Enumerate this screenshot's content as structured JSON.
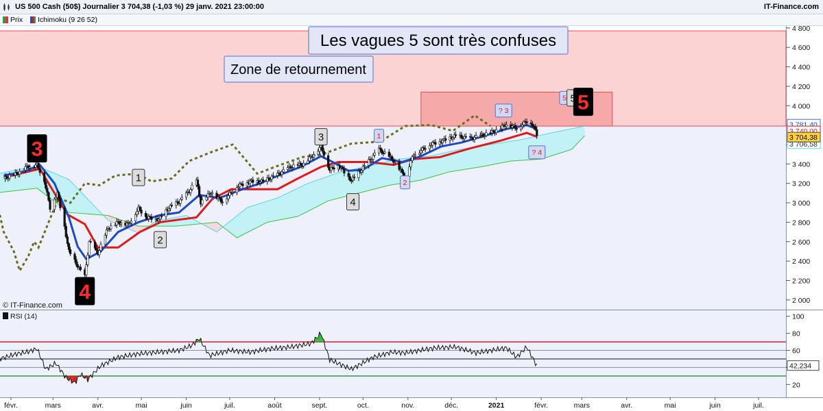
{
  "header": {
    "title": "US 500 Cash (50$) Journalier 3 704,38 (-1,03 %) 29 janv. 2021 23:00:00",
    "brand": "IT-Finance.com"
  },
  "legend": {
    "price_label": "Prix",
    "ichimoku_label": "Ichimoku (9 26 52)",
    "rsi_label": "RSI (14)"
  },
  "watermark": "© IT-Finance.com",
  "annotations": {
    "headline": "Les vagues 5 sont très confuses",
    "zone": "Zone de retournement",
    "wave_labels": [
      {
        "text": "3",
        "style": "big",
        "date": "2020-02-19",
        "price": 3560
      },
      {
        "text": "4",
        "style": "big",
        "date": "2020-03-23",
        "price": 2090
      },
      {
        "text": "1",
        "style": "grey",
        "date": "2020-04-29",
        "price": 3260
      },
      {
        "text": "2",
        "style": "grey",
        "date": "2020-05-14",
        "price": 2620
      },
      {
        "text": "3",
        "style": "grey",
        "date": "2020-09-02",
        "price": 3680
      },
      {
        "text": "4",
        "style": "grey",
        "date": "2020-09-24",
        "price": 3010
      },
      {
        "text": "1",
        "style": "pink",
        "date": "2020-10-12",
        "price": 3690
      },
      {
        "text": "2",
        "style": "pink",
        "date": "2020-10-30",
        "price": 3210
      },
      {
        "text": "? 3",
        "style": "pink",
        "date": "2021-01-06",
        "price": 3950
      },
      {
        "text": "? 4",
        "style": "pink",
        "date": "2021-01-29",
        "price": 3520
      },
      {
        "text": "5",
        "style": "pink",
        "date": "2021-02-17",
        "price": 4080
      },
      {
        "text": "5",
        "style": "grey",
        "date": "2021-02-23",
        "price": 4080
      },
      {
        "text": "5",
        "style": "big",
        "date": "2021-03-02",
        "price": 4040
      }
    ]
  },
  "chart_data": [
    {
      "type": "candlestick",
      "title": "US 500 Cash (50$) Journalier",
      "last_price": "3 704,38",
      "x_tick_labels": [
        "févr.",
        "mars",
        "avr.",
        "mai",
        "juin",
        "juil.",
        "août",
        "sept.",
        "oct.",
        "nov.",
        "déc.",
        "2021",
        "févr.",
        "mars",
        "avr.",
        "mai",
        "juin",
        "juil."
      ],
      "x_tick_dates": [
        "2020-02-01",
        "2020-03-01",
        "2020-04-01",
        "2020-05-01",
        "2020-06-01",
        "2020-07-01",
        "2020-08-01",
        "2020-09-01",
        "2020-10-01",
        "2020-11-01",
        "2020-12-01",
        "2021-01-01",
        "2021-02-01",
        "2021-03-01",
        "2021-04-01",
        "2021-05-01",
        "2021-06-01",
        "2021-07-01"
      ],
      "y_ticks": [
        2000,
        2200,
        2400,
        2600,
        2800,
        3000,
        3200,
        3400,
        3600,
        3800,
        4000,
        4200,
        4400,
        4600,
        4800
      ],
      "y_tick_labels": [
        "2 000",
        "2 200",
        "2 400",
        "2 600",
        "2 800",
        "3 000",
        "3 200",
        "3 400",
        "3 600",
        "3 800",
        "4 000",
        "4 200",
        "4 400",
        "4 600",
        "4 800"
      ],
      "ylim": [
        1900,
        4820
      ],
      "price_flags": [
        "3 781,40",
        "3 740,00",
        "3 704,38",
        "3 706,58"
      ],
      "zones": [
        {
          "name": "Zone de retournement",
          "from_date": "2020-01-20",
          "to_date": "2021-07-31",
          "low": 3790,
          "high": 4770,
          "color": "#fbd3d3"
        },
        {
          "name": "target",
          "from_date": "2020-11-10",
          "to_date": "2021-03-22",
          "low": 3790,
          "high": 4140,
          "color": "#f6a9a9"
        }
      ],
      "close": {
        "dates": [
          "2020-01-27",
          "2020-02-05",
          "2020-02-12",
          "2020-02-19",
          "2020-02-24",
          "2020-02-28",
          "2020-03-04",
          "2020-03-09",
          "2020-03-12",
          "2020-03-16",
          "2020-03-20",
          "2020-03-23",
          "2020-03-26",
          "2020-04-01",
          "2020-04-08",
          "2020-04-15",
          "2020-04-22",
          "2020-04-29",
          "2020-05-05",
          "2020-05-13",
          "2020-05-20",
          "2020-05-27",
          "2020-06-03",
          "2020-06-08",
          "2020-06-11",
          "2020-06-18",
          "2020-06-26",
          "2020-07-06",
          "2020-07-15",
          "2020-07-24",
          "2020-08-03",
          "2020-08-12",
          "2020-08-21",
          "2020-08-28",
          "2020-09-02",
          "2020-09-08",
          "2020-09-14",
          "2020-09-23",
          "2020-10-01",
          "2020-10-12",
          "2020-10-21",
          "2020-10-30",
          "2020-11-05",
          "2020-11-09",
          "2020-11-16",
          "2020-11-25",
          "2020-12-04",
          "2020-12-14",
          "2020-12-21",
          "2020-12-30",
          "2021-01-08",
          "2021-01-15",
          "2021-01-22",
          "2021-01-26",
          "2021-01-29"
        ],
        "values": [
          3250,
          3300,
          3370,
          3390,
          3230,
          2950,
          3100,
          2750,
          2500,
          2400,
          2300,
          2240,
          2600,
          2480,
          2740,
          2800,
          2780,
          2940,
          2850,
          2830,
          2950,
          3010,
          3120,
          3230,
          3000,
          3110,
          3010,
          3170,
          3220,
          3220,
          3290,
          3370,
          3400,
          3500,
          3580,
          3340,
          3390,
          3230,
          3360,
          3550,
          3450,
          3270,
          3500,
          3530,
          3600,
          3640,
          3690,
          3660,
          3690,
          3730,
          3810,
          3770,
          3840,
          3810,
          3704
        ]
      },
      "ichimoku": {
        "tenkan": {
          "dates": [
            "2020-01-27",
            "2020-02-12",
            "2020-02-21",
            "2020-03-02",
            "2020-03-12",
            "2020-03-18",
            "2020-03-24",
            "2020-04-03",
            "2020-04-15",
            "2020-04-29",
            "2020-05-13",
            "2020-05-27",
            "2020-06-10",
            "2020-06-24",
            "2020-07-08",
            "2020-07-22",
            "2020-08-05",
            "2020-08-19",
            "2020-09-02",
            "2020-09-10",
            "2020-09-21",
            "2020-10-01",
            "2020-10-14",
            "2020-10-28",
            "2020-11-10",
            "2020-11-24",
            "2020-12-08",
            "2020-12-22",
            "2021-01-08",
            "2021-01-22",
            "2021-01-29"
          ],
          "values": [
            3280,
            3330,
            3390,
            3200,
            2850,
            2550,
            2420,
            2500,
            2700,
            2800,
            2870,
            2900,
            3080,
            3050,
            3130,
            3200,
            3290,
            3370,
            3480,
            3420,
            3330,
            3340,
            3460,
            3420,
            3480,
            3580,
            3620,
            3680,
            3760,
            3800,
            3760
          ]
        },
        "kijun": {
          "dates": [
            "2020-01-27",
            "2020-02-21",
            "2020-03-02",
            "2020-03-11",
            "2020-03-23",
            "2020-04-01",
            "2020-04-15",
            "2020-04-30",
            "2020-05-14",
            "2020-06-08",
            "2020-06-19",
            "2020-07-02",
            "2020-08-03",
            "2020-08-17",
            "2020-09-02",
            "2020-09-14",
            "2020-10-05",
            "2020-10-22",
            "2020-11-05",
            "2020-11-23",
            "2020-12-14",
            "2021-01-04",
            "2021-01-22",
            "2021-01-29"
          ],
          "values": [
            3260,
            3350,
            3100,
            2880,
            2780,
            2540,
            2540,
            2700,
            2800,
            2850,
            3040,
            3140,
            3140,
            3250,
            3370,
            3420,
            3420,
            3390,
            3450,
            3470,
            3560,
            3640,
            3720,
            3680
          ]
        },
        "chikou": {
          "dates": [
            "2020-01-20",
            "2020-01-27",
            "2020-02-03",
            "2020-02-07",
            "2020-02-13",
            "2020-02-17",
            "2020-02-20",
            "2020-02-27",
            "2020-03-05",
            "2020-03-13",
            "2020-03-23",
            "2020-04-02",
            "2020-04-13",
            "2020-04-28",
            "2020-05-08",
            "2020-05-22",
            "2020-06-03",
            "2020-06-18",
            "2020-07-03",
            "2020-07-20",
            "2020-08-03",
            "2020-08-20",
            "2020-09-03",
            "2020-09-23",
            "2020-10-13",
            "2020-10-30",
            "2020-11-17",
            "2020-12-02",
            "2020-12-17",
            "2020-12-28"
          ],
          "values": [
            3150,
            2700,
            2500,
            2300,
            2450,
            2600,
            2540,
            2800,
            3050,
            3000,
            3200,
            3180,
            3280,
            3300,
            3220,
            3250,
            3430,
            3520,
            3600,
            3300,
            3380,
            3470,
            3500,
            3610,
            3630,
            3790,
            3800,
            3740,
            3900,
            3790
          ]
        },
        "kumo_span_a": {
          "dates": [
            "2020-01-20",
            "2020-02-19",
            "2020-03-12",
            "2020-04-08",
            "2020-04-29",
            "2020-05-11",
            "2020-06-01",
            "2020-06-22",
            "2020-07-13",
            "2020-08-03",
            "2020-08-24",
            "2020-09-14",
            "2020-10-05",
            "2020-10-26",
            "2020-11-16",
            "2020-12-07",
            "2020-12-28",
            "2021-01-18",
            "2021-02-08",
            "2021-03-03"
          ],
          "values": [
            3290,
            3380,
            3240,
            2820,
            2690,
            2810,
            2870,
            2700,
            2950,
            3050,
            3200,
            3310,
            3380,
            3450,
            3480,
            3550,
            3600,
            3650,
            3720,
            3790
          ]
        },
        "kumo_span_b": {
          "dates": [
            "2020-01-20",
            "2020-02-19",
            "2020-03-12",
            "2020-04-08",
            "2020-04-29",
            "2020-05-25",
            "2020-06-22",
            "2020-07-06",
            "2020-07-27",
            "2020-08-17",
            "2020-09-07",
            "2020-09-28",
            "2020-10-19",
            "2020-11-09",
            "2020-11-30",
            "2020-12-21",
            "2021-01-11",
            "2021-02-01",
            "2021-02-22",
            "2021-03-03"
          ],
          "values": [
            3100,
            3150,
            2900,
            2870,
            2760,
            2760,
            2800,
            2640,
            2800,
            2860,
            3020,
            3100,
            3180,
            3230,
            3320,
            3370,
            3430,
            3450,
            3550,
            3690
          ]
        }
      }
    },
    {
      "type": "line",
      "title": "RSI (14)",
      "last_value": "42,234",
      "y_ticks": [
        20,
        40,
        60,
        80,
        100
      ],
      "ylim": [
        5,
        107
      ],
      "overbought": 70,
      "oversold": 30,
      "dates": [
        "2020-01-20",
        "2020-01-28",
        "2020-02-05",
        "2020-02-12",
        "2020-02-19",
        "2020-02-25",
        "2020-03-03",
        "2020-03-10",
        "2020-03-16",
        "2020-03-20",
        "2020-03-25",
        "2020-04-03",
        "2020-04-15",
        "2020-04-29",
        "2020-05-13",
        "2020-05-27",
        "2020-06-05",
        "2020-06-10",
        "2020-06-17",
        "2020-07-01",
        "2020-07-15",
        "2020-07-29",
        "2020-08-12",
        "2020-08-26",
        "2020-09-02",
        "2020-09-08",
        "2020-09-23",
        "2020-10-08",
        "2020-10-21",
        "2020-10-30",
        "2020-11-09",
        "2020-11-20",
        "2020-12-04",
        "2020-12-18",
        "2021-01-08",
        "2021-01-15",
        "2021-01-22",
        "2021-01-29"
      ],
      "values": [
        48,
        52,
        56,
        58,
        62,
        38,
        45,
        28,
        22,
        32,
        26,
        42,
        52,
        56,
        58,
        60,
        66,
        74,
        54,
        60,
        58,
        62,
        64,
        68,
        80,
        49,
        38,
        52,
        58,
        57,
        60,
        63,
        64,
        57,
        63,
        52,
        64,
        42
      ]
    }
  ]
}
